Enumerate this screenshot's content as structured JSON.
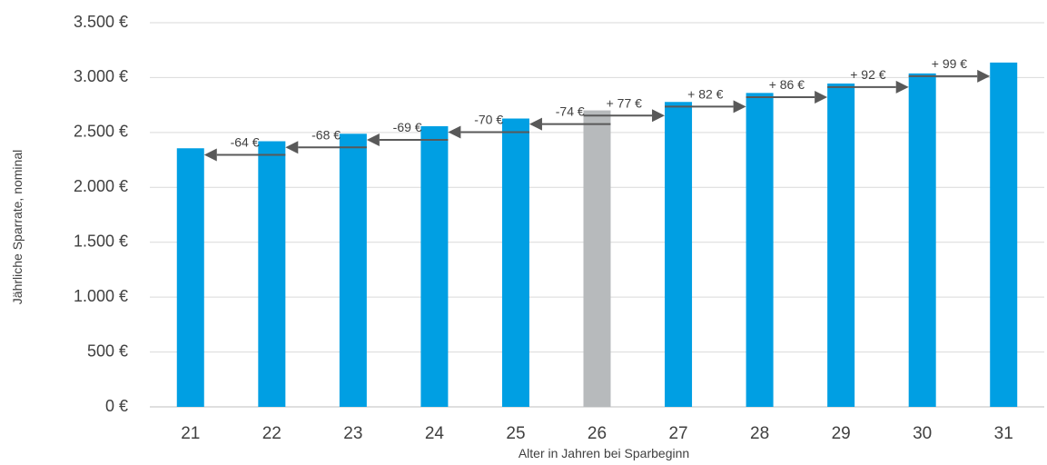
{
  "chart_data": {
    "type": "bar",
    "xlabel": "Alter in Jahren bei Sparbeginn",
    "ylabel": "Jährliche Sparrate, nominal",
    "categories": [
      "21",
      "22",
      "23",
      "24",
      "25",
      "26",
      "27",
      "28",
      "29",
      "30",
      "31"
    ],
    "values": [
      2356,
      2420,
      2488,
      2557,
      2627,
      2701,
      2778,
      2860,
      2946,
      3038,
      3137
    ],
    "ylim": [
      0,
      3500
    ],
    "yticks": [
      0,
      500,
      1000,
      1500,
      2000,
      2500,
      3000,
      3500
    ],
    "ytick_labels": [
      "0 €",
      "500 €",
      "1.000 €",
      "1.500 €",
      "2.000 €",
      "2.500 €",
      "3.000 €",
      "3.500 €"
    ],
    "grid": true,
    "highlight_index": 5,
    "colors": {
      "bar": "#009fe3",
      "highlight": "#b7babc",
      "arrow": "#595959",
      "grid": "#d9d9d9"
    },
    "annotations": [
      {
        "from": "22",
        "to": "21",
        "label": "-64 €"
      },
      {
        "from": "23",
        "to": "22",
        "label": "-68 €"
      },
      {
        "from": "24",
        "to": "23",
        "label": "-69 €"
      },
      {
        "from": "25",
        "to": "24",
        "label": "-70 €"
      },
      {
        "from": "26",
        "to": "25",
        "label": "-74 €"
      },
      {
        "from": "26",
        "to": "27",
        "label": "+ 77 €"
      },
      {
        "from": "27",
        "to": "28",
        "label": "+ 82 €"
      },
      {
        "from": "28",
        "to": "29",
        "label": "+ 86 €"
      },
      {
        "from": "29",
        "to": "30",
        "label": "+ 92 €"
      },
      {
        "from": "30",
        "to": "31",
        "label": "+ 99 €"
      }
    ]
  }
}
